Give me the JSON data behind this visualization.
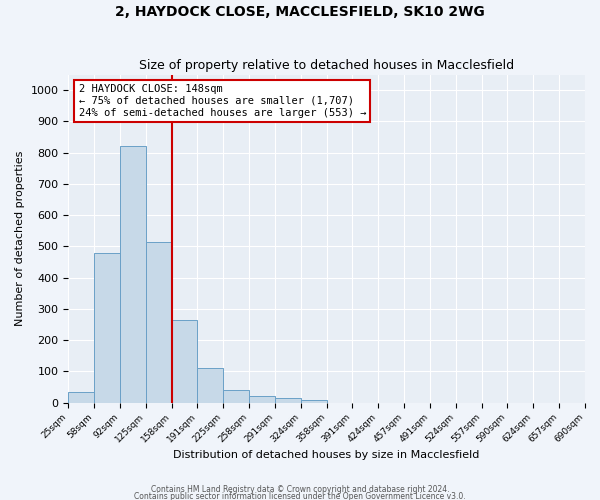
{
  "title1": "2, HAYDOCK CLOSE, MACCLESFIELD, SK10 2WG",
  "title2": "Size of property relative to detached houses in Macclesfield",
  "xlabel": "Distribution of detached houses by size in Macclesfield",
  "ylabel": "Number of detached properties",
  "bin_labels": [
    "25sqm",
    "58sqm",
    "92sqm",
    "125sqm",
    "158sqm",
    "191sqm",
    "225sqm",
    "258sqm",
    "291sqm",
    "324sqm",
    "358sqm",
    "391sqm",
    "424sqm",
    "457sqm",
    "491sqm",
    "524sqm",
    "557sqm",
    "590sqm",
    "624sqm",
    "657sqm",
    "690sqm"
  ],
  "bar_values": [
    35,
    480,
    820,
    515,
    265,
    110,
    40,
    20,
    15,
    10,
    0,
    0,
    0,
    0,
    0,
    0,
    0,
    0,
    0,
    0
  ],
  "bar_color": "#c7d9e8",
  "bar_edge_color": "#6aa0c7",
  "property_line_bin": 4,
  "annotation_text": "2 HAYDOCK CLOSE: 148sqm\n← 75% of detached houses are smaller (1,707)\n24% of semi-detached houses are larger (553) →",
  "annotation_box_color": "#ffffff",
  "annotation_box_edge_color": "#cc0000",
  "line_color": "#cc0000",
  "ylim": [
    0,
    1050
  ],
  "yticks": [
    0,
    100,
    200,
    300,
    400,
    500,
    600,
    700,
    800,
    900,
    1000
  ],
  "background_color": "#eef2f8",
  "plot_bg_color": "#e8eef5",
  "grid_color": "#ffffff",
  "fig_bg_color": "#f0f4fa",
  "footer1": "Contains HM Land Registry data © Crown copyright and database right 2024.",
  "footer2": "Contains public sector information licensed under the Open Government Licence v3.0."
}
